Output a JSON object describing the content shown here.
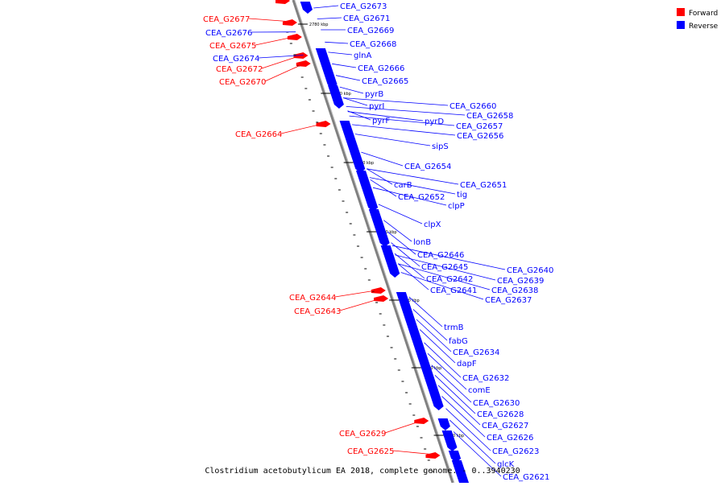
{
  "caption": "Clostridium acetobutylicum EA 2018, complete genome. - 0..3940230",
  "legend": [
    {
      "label": "Forward",
      "color": "#ff0000"
    },
    {
      "label": "Reverse",
      "color": "#0000ff"
    }
  ],
  "colors": {
    "forward": "#ff0000",
    "reverse": "#0000ff",
    "backbone": "#808080"
  },
  "ticks": [
    "2780 kbp",
    "2770 kbp",
    "2760 kbp",
    "2750 kbp",
    "2740 kbp",
    "2730 kbp",
    "2720 kbp"
  ],
  "genes_forward": [
    "CEA_G2677",
    "CEA_G2675",
    "CEA_G2672",
    "CEA_G2670",
    "CEA_G2664",
    "CEA_G2644",
    "CEA_G2643",
    "CEA_G2629",
    "CEA_G2625"
  ],
  "genes_reverse": [
    "CEA_G2676",
    "CEA_G2674",
    "CEA_G2673",
    "CEA_G2671",
    "CEA_G2669",
    "CEA_G2668",
    "glnA",
    "CEA_G2666",
    "CEA_G2665",
    "pyrB",
    "pyrI",
    "pyrF",
    "pyrD",
    "CEA_G2660",
    "CEA_G2658",
    "CEA_G2657",
    "CEA_G2656",
    "sipS",
    "CEA_G2654",
    "carB",
    "CEA_G2652",
    "CEA_G2651",
    "tig",
    "clpP",
    "clpX",
    "lonB",
    "CEA_G2646",
    "CEA_G2645",
    "CEA_G2642",
    "CEA_G2641",
    "CEA_G2640",
    "CEA_G2639",
    "CEA_G2638",
    "CEA_G2637",
    "trmB",
    "fabG",
    "CEA_G2634",
    "dapF",
    "CEA_G2632",
    "comE",
    "CEA_G2630",
    "CEA_G2628",
    "CEA_G2627",
    "CEA_G2626",
    "CEA_G2623",
    "glcK",
    "CEA_G2621"
  ]
}
